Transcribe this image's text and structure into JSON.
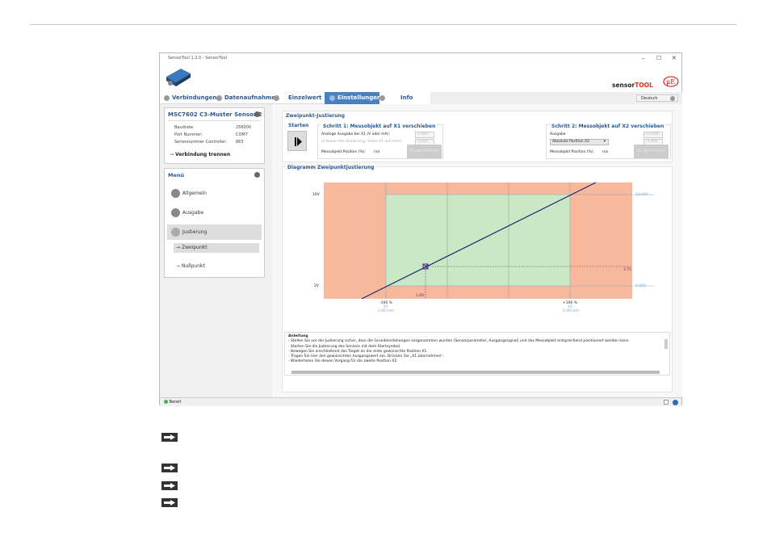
{
  "window": {
    "title": "SensorTool 1.2.0 - SensorTool",
    "brand_sensor": "sensor",
    "brand_tool": "TOOL",
    "language": "Deutsch",
    "minimize": "–",
    "maximize": "☐",
    "close": "✕"
  },
  "tabs": [
    {
      "label": "Verbindungen"
    },
    {
      "label": "Datenaufnahme"
    },
    {
      "label": "Einzelwert"
    },
    {
      "label": "Einstellungen",
      "active": true
    },
    {
      "label": "Info"
    }
  ],
  "sensor": {
    "title": "MSC7602 C3-Muster Sensor 2",
    "rows": [
      {
        "k": "Baudrate:",
        "v": "256000"
      },
      {
        "k": "Port Nummer:",
        "v": "COM7"
      },
      {
        "k": "Seriennummer Controller:",
        "v": "863"
      }
    ],
    "disconnect": "Verbindung trennen"
  },
  "menu": {
    "title": "Menü",
    "items": [
      {
        "label": "Allgemein",
        "icon": "home-icon"
      },
      {
        "label": "Ausgabe",
        "icon": "wave-icon"
      },
      {
        "label": "Justierung",
        "icon": "target-icon",
        "active": true
      }
    ],
    "subitems": [
      {
        "label": "Zweipunkt",
        "active": true
      },
      {
        "label": "Nullpunkt"
      }
    ]
  },
  "main": {
    "title": "Zweipunkt-Justierung",
    "start": "Starten",
    "step1": {
      "title": "Schritt 1: Messobjekt  auf X1 verschieben",
      "analog_label": "Analoge Ausgabe bei X1 (V oder mA):",
      "analog_value": "2.000",
      "mm_label": "Nutze mm-Skalierung. Setze X1 auf (mm):",
      "mm_value": "3.000",
      "pos_label": "Messobjekt Position (%):",
      "pos_value": "n/a",
      "button": "X1 übernehmen"
    },
    "step2": {
      "title": "Schritt 2: Messobjekt auf X2 verschieben",
      "output_label": "Ausgabe",
      "select_value": "Absolute Position X2",
      "v1": "10.000",
      "v2": "-3.000",
      "pos_label": "Messobjekt Position (%):",
      "pos_value": "n/a",
      "button": "X2 übernehmen"
    },
    "diagram": {
      "title": "Diagramm Zweipunktjustierung",
      "y_top": "10V",
      "y_bottom": "2V",
      "right_top": "10.00V",
      "right_bottom": "2.00V",
      "right_mid": "3.75",
      "x_marker": "1.69",
      "x1_pct": "-100 %",
      "x1_name": "X1",
      "x1_mm": "3.00 mm",
      "x2_pct": "+100 %",
      "x2_name": "X2",
      "x2_mm": "-3.00 mm",
      "colors": {
        "out": "#f7b89c",
        "in": "#c9e8c6",
        "line": "#1e2a6b"
      }
    },
    "instructions": {
      "title": "Anleitung",
      "lines": [
        "- Stellen Sie vor der Justierung sicher, dass die Grundeinstellungen vorgenommen wurden (Sensorparameter, Ausgangssignal) und das Messobjekt entsprechend positioniert werden kann.",
        "- Starten Sie die Justierung des Sensors mit dem Startsymbol.",
        "- Bewegen Sie anschließend das Target an die erste gewünschte Position X1.",
        "- Tragen Sie hier den gewünschten Ausgangswert ein. Drücken Sie „X1 übernehmen“.",
        "- Wiederholen Sie diesen Vorgang für die zweite Position X2."
      ]
    }
  },
  "status": {
    "text": "Bereit"
  }
}
